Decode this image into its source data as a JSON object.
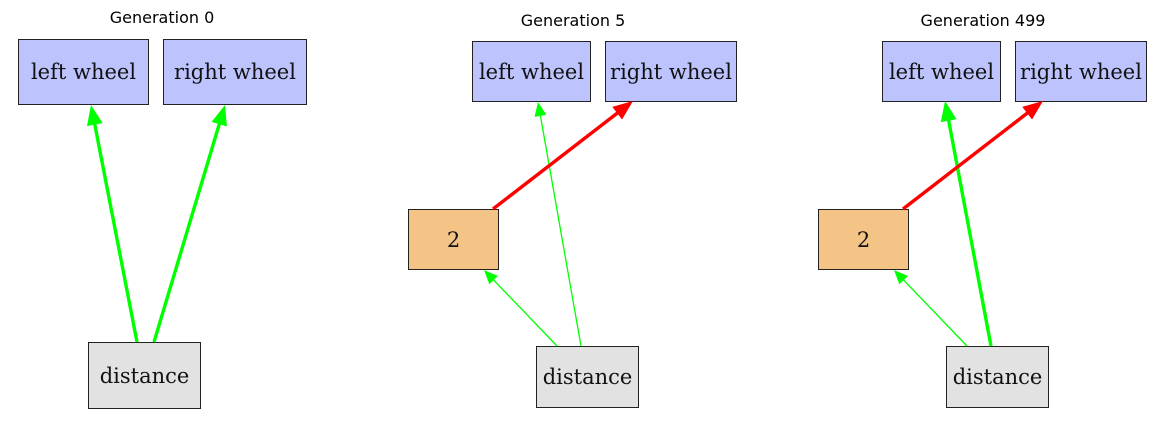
{
  "colors": {
    "output_node": "#bcc3fd",
    "input_node": "#e2e2e2",
    "hidden_node": "#f4c386",
    "positive_edge": "#00ff00",
    "negative_edge": "#ff0000"
  },
  "panels": [
    {
      "title": "Generation 0",
      "nodes": {
        "left_wheel": "left wheel",
        "right_wheel": "right wheel",
        "distance": "distance"
      },
      "edges": [
        {
          "from": "distance",
          "to": "left wheel",
          "sign": "positive",
          "weight": "strong"
        },
        {
          "from": "distance",
          "to": "right wheel",
          "sign": "positive",
          "weight": "strong"
        }
      ]
    },
    {
      "title": "Generation 5",
      "nodes": {
        "left_wheel": "left wheel",
        "right_wheel": "right wheel",
        "hidden": "2",
        "distance": "distance"
      },
      "edges": [
        {
          "from": "distance",
          "to": "left wheel",
          "sign": "positive",
          "weight": "weak"
        },
        {
          "from": "distance",
          "to": "2",
          "sign": "positive",
          "weight": "weak"
        },
        {
          "from": "2",
          "to": "right wheel",
          "sign": "negative",
          "weight": "strong"
        }
      ]
    },
    {
      "title": "Generation 499",
      "nodes": {
        "left_wheel": "left wheel",
        "right_wheel": "right wheel",
        "hidden": "2",
        "distance": "distance"
      },
      "edges": [
        {
          "from": "distance",
          "to": "left wheel",
          "sign": "positive",
          "weight": "strong"
        },
        {
          "from": "distance",
          "to": "2",
          "sign": "positive",
          "weight": "weak"
        },
        {
          "from": "2",
          "to": "right wheel",
          "sign": "negative",
          "weight": "strong"
        }
      ]
    }
  ]
}
